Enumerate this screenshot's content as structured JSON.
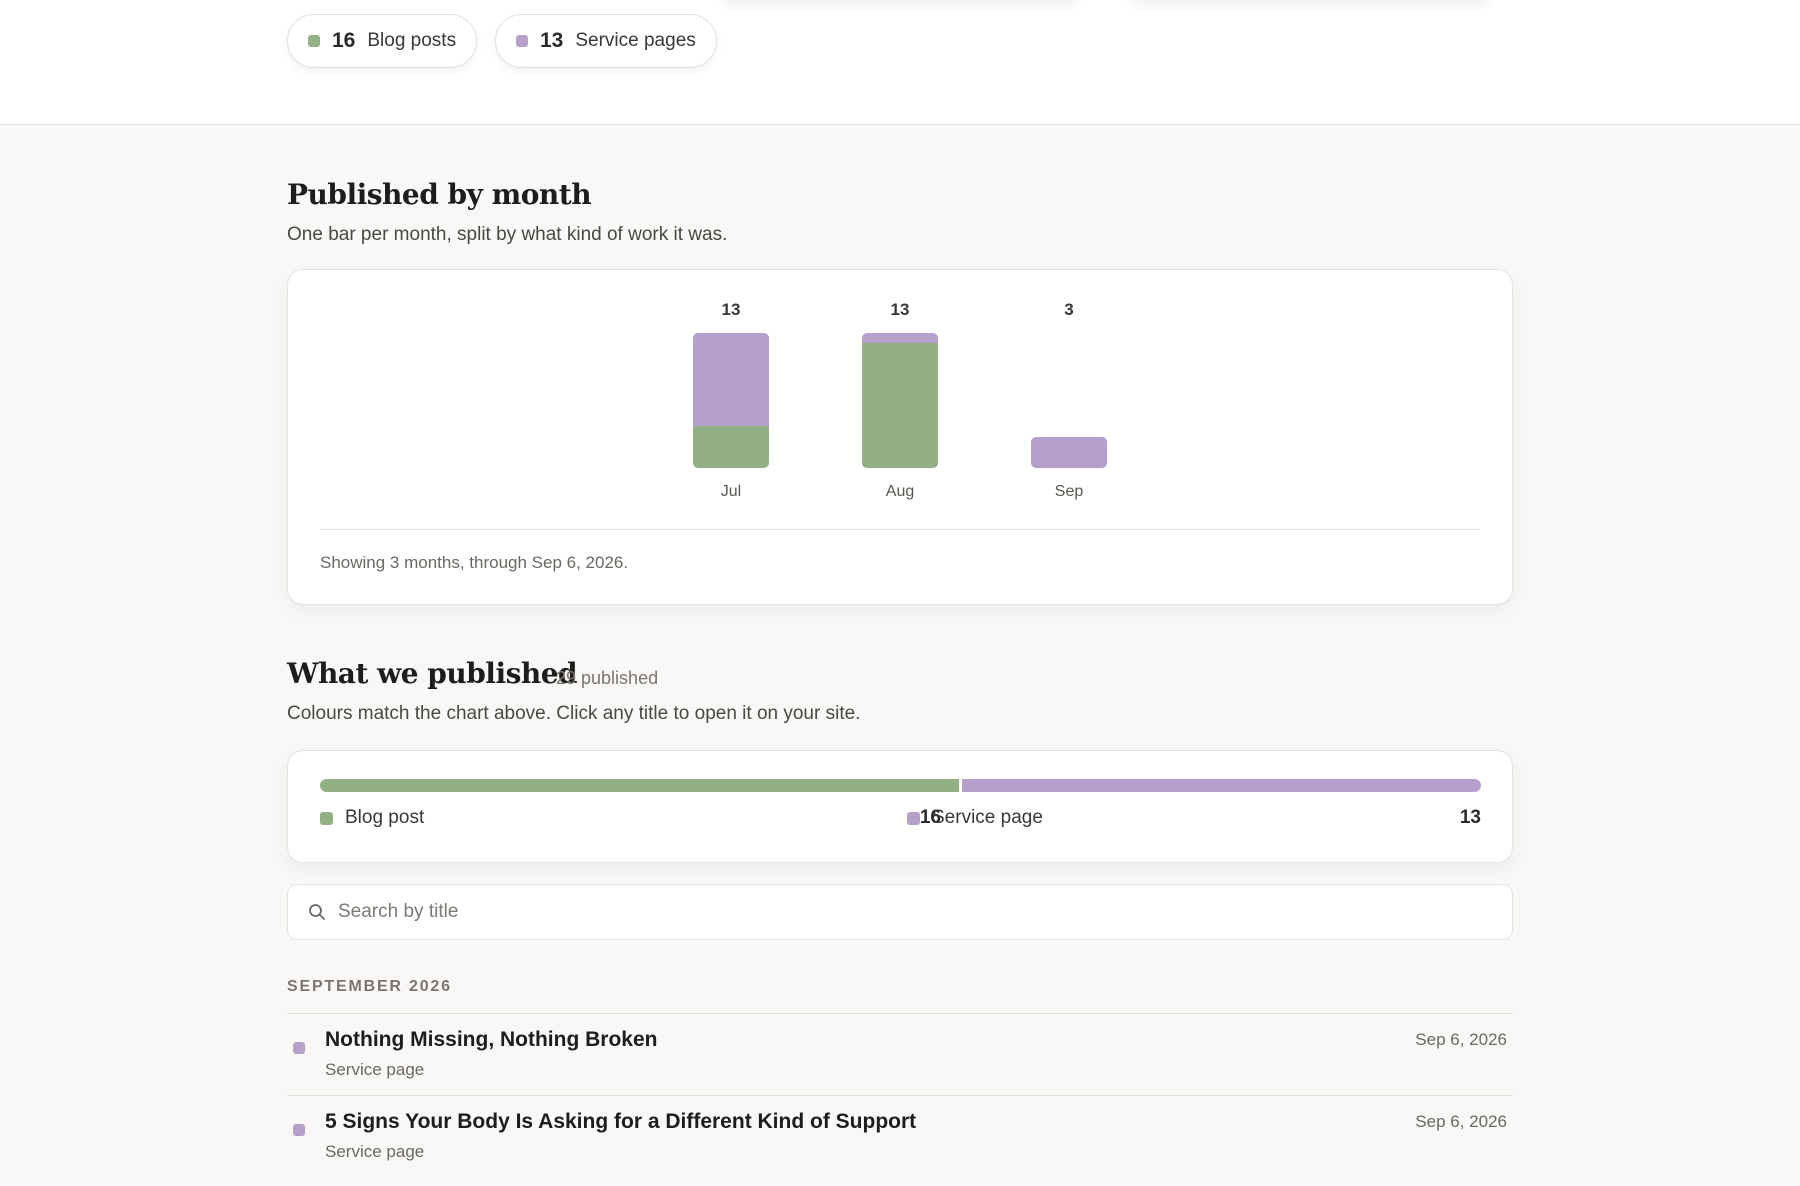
{
  "colors": {
    "blog": "#93b085",
    "service": "#b79fcb"
  },
  "summary": [
    {
      "count": "16",
      "label": "Blog posts",
      "kind": "blog"
    },
    {
      "count": "13",
      "label": "Service pages",
      "kind": "service"
    }
  ],
  "monthly": {
    "title": "Published by month",
    "subtitle": "One bar per month, split by what kind of work it was.",
    "footer": "Showing 3 months, through Sep 6, 2026."
  },
  "chart_data": {
    "type": "bar",
    "stacked": true,
    "categories": [
      "Jul",
      "Aug",
      "Sep"
    ],
    "totals": [
      13,
      13,
      3
    ],
    "series": [
      {
        "key": "blog",
        "values": [
          4,
          12,
          0
        ]
      },
      {
        "key": "service",
        "values": [
          9,
          1,
          3
        ]
      }
    ]
  },
  "published": {
    "title": "What we published",
    "count_label": "29 published",
    "subtitle": "Colours match the chart above. Click any title to open it on your site.",
    "split": [
      {
        "label": "Blog post",
        "count": "16",
        "value": 16,
        "kind": "blog"
      },
      {
        "label": "Service page",
        "count": "13",
        "value": 13,
        "kind": "service"
      }
    ]
  },
  "search": {
    "placeholder": "Search by title",
    "value": "",
    "icon": "search-icon"
  },
  "list": {
    "month": "SEPTEMBER 2026",
    "items": [
      {
        "title": "Nothing Missing, Nothing Broken",
        "kind_label": "Service page",
        "date": "Sep 6, 2026",
        "kind": "service"
      },
      {
        "title": "5 Signs Your Body Is Asking for a Different Kind of Support",
        "kind_label": "Service page",
        "date": "Sep 6, 2026",
        "kind": "service"
      }
    ]
  }
}
